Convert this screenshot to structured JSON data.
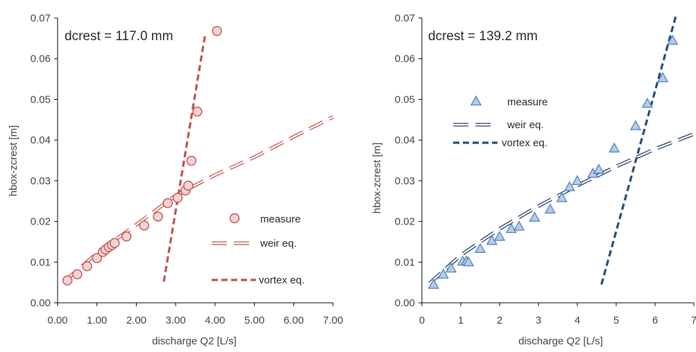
{
  "chart_data": [
    {
      "type": "scatter",
      "annotation": "dcrest = 117.0 mm",
      "xlabel": "discharge Q2  [L/s]",
      "ylabel": "hbox-zcrest [m]",
      "xlim": [
        0,
        7
      ],
      "ylim": [
        0,
        0.07
      ],
      "xticks": [
        "0.00",
        "1.00",
        "2.00",
        "3.00",
        "4.00",
        "5.00",
        "6.00",
        "7.00"
      ],
      "yticks": [
        "0.00",
        "0.01",
        "0.02",
        "0.03",
        "0.04",
        "0.05",
        "0.06",
        "0.07"
      ],
      "legend_position": "bottom-right",
      "series": [
        {
          "name": "measure",
          "kind": "marker-circle",
          "color": "#c0504d",
          "fill": "#f2d4d3",
          "points": [
            [
              0.25,
              0.0055
            ],
            [
              0.5,
              0.007
            ],
            [
              0.75,
              0.009
            ],
            [
              1.0,
              0.011
            ],
            [
              1.15,
              0.0125
            ],
            [
              1.22,
              0.0131
            ],
            [
              1.3,
              0.0137
            ],
            [
              1.38,
              0.0142
            ],
            [
              1.45,
              0.0147
            ],
            [
              1.75,
              0.0163
            ],
            [
              2.2,
              0.019
            ],
            [
              2.55,
              0.0212
            ],
            [
              2.8,
              0.0245
            ],
            [
              3.05,
              0.0258
            ],
            [
              3.25,
              0.0276
            ],
            [
              3.32,
              0.0288
            ],
            [
              3.4,
              0.0349
            ],
            [
              3.55,
              0.047
            ],
            [
              4.05,
              0.0668
            ]
          ]
        },
        {
          "name": "weir eq.",
          "kind": "line-hollow-dash",
          "color": "#c0504d",
          "points": [
            [
              0.2,
              0.0055
            ],
            [
              1.0,
              0.0122
            ],
            [
              2.0,
              0.0192
            ],
            [
              3.0,
              0.0264
            ],
            [
              4.0,
              0.0314
            ],
            [
              5.0,
              0.0358
            ],
            [
              6.0,
              0.0408
            ],
            [
              7.0,
              0.0457
            ]
          ]
        },
        {
          "name": "vortex eq.",
          "kind": "line-dash",
          "color": "#c0504d",
          "points": [
            [
              2.7,
              0.0052
            ],
            [
              3.75,
              0.066
            ]
          ]
        }
      ]
    },
    {
      "type": "scatter",
      "annotation": "dcrest = 139.2 mm",
      "xlabel": "discharge Q2  [L/s]",
      "ylabel": "hbox-zcrest [m]",
      "xlim": [
        0,
        7
      ],
      "ylim": [
        0,
        0.07
      ],
      "xticks": [
        "0",
        "1",
        "2",
        "3",
        "4",
        "5",
        "6",
        "7"
      ],
      "yticks": [
        "0.00",
        "0.01",
        "0.02",
        "0.03",
        "0.04",
        "0.05",
        "0.06",
        "0.07"
      ],
      "legend_position": "top-left",
      "series": [
        {
          "name": "measure",
          "kind": "marker-triangle",
          "color": "#4f81bd",
          "fill": "#b8cce4",
          "points": [
            [
              0.3,
              0.0045
            ],
            [
              0.55,
              0.007
            ],
            [
              0.75,
              0.0085
            ],
            [
              1.05,
              0.0102
            ],
            [
              1.15,
              0.0103
            ],
            [
              1.2,
              0.01
            ],
            [
              1.5,
              0.0133
            ],
            [
              1.8,
              0.0153
            ],
            [
              2.0,
              0.0163
            ],
            [
              2.3,
              0.0182
            ],
            [
              2.5,
              0.0188
            ],
            [
              2.9,
              0.021
            ],
            [
              3.3,
              0.023
            ],
            [
              3.6,
              0.0258
            ],
            [
              3.8,
              0.0285
            ],
            [
              4.0,
              0.03
            ],
            [
              4.4,
              0.0318
            ],
            [
              4.55,
              0.0328
            ],
            [
              4.95,
              0.038
            ],
            [
              5.5,
              0.0435
            ],
            [
              5.8,
              0.049
            ],
            [
              6.2,
              0.0553
            ],
            [
              6.45,
              0.0645
            ]
          ]
        },
        {
          "name": "weir eq.",
          "kind": "line-hollow-dash",
          "color": "#1f3864",
          "points": [
            [
              0.2,
              0.0048
            ],
            [
              1.0,
              0.0117
            ],
            [
              2.0,
              0.0182
            ],
            [
              3.0,
              0.0238
            ],
            [
              4.0,
              0.0288
            ],
            [
              5.0,
              0.0335
            ],
            [
              6.0,
              0.0378
            ],
            [
              7.0,
              0.0415
            ]
          ]
        },
        {
          "name": "vortex eq.",
          "kind": "line-dash",
          "color": "#1f4e79",
          "points": [
            [
              4.62,
              0.0045
            ],
            [
              6.55,
              0.071
            ]
          ]
        }
      ]
    }
  ]
}
